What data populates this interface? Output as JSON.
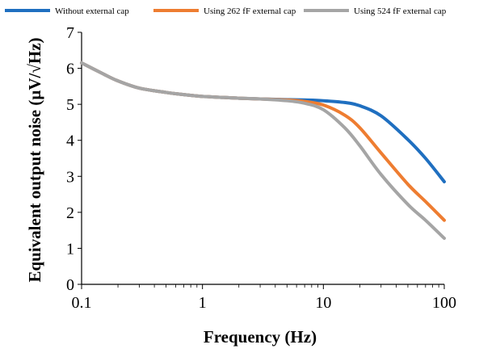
{
  "chart_data": {
    "type": "line",
    "title": "",
    "xlabel": "Frequency (Hz)",
    "ylabel": "Equivalent output noise (µV/√Hz)",
    "xscale": "log",
    "xlim": [
      0.1,
      100
    ],
    "ylim": [
      0,
      7
    ],
    "x_ticks": [
      0.1,
      1,
      10,
      100
    ],
    "x_tick_labels": [
      "0.1",
      "1",
      "10",
      "100"
    ],
    "y_ticks": [
      0,
      1,
      2,
      3,
      4,
      5,
      6,
      7
    ],
    "y_tick_labels": [
      "0",
      "1",
      "2",
      "3",
      "4",
      "5",
      "6",
      "7"
    ],
    "grid": false,
    "legend_position": "top",
    "x": [
      0.1,
      0.15,
      0.2,
      0.3,
      0.5,
      0.7,
      1,
      1.5,
      2,
      3,
      5,
      7,
      10,
      15,
      20,
      30,
      50,
      70,
      100
    ],
    "series": [
      {
        "name": "Without external cap",
        "color": "#1f6fc0",
        "values": [
          6.15,
          5.85,
          5.65,
          5.45,
          5.33,
          5.27,
          5.22,
          5.19,
          5.17,
          5.15,
          5.13,
          5.12,
          5.1,
          5.05,
          4.96,
          4.68,
          4.02,
          3.5,
          2.85
        ]
      },
      {
        "name": "Using 262 fF external cap",
        "color": "#ee7d31",
        "values": [
          6.15,
          5.85,
          5.65,
          5.45,
          5.33,
          5.27,
          5.22,
          5.19,
          5.17,
          5.15,
          5.12,
          5.08,
          4.98,
          4.7,
          4.35,
          3.65,
          2.78,
          2.3,
          1.78
        ]
      },
      {
        "name": "Using 524 fF external cap",
        "color": "#a5a5a5",
        "values": [
          6.15,
          5.85,
          5.65,
          5.45,
          5.33,
          5.27,
          5.22,
          5.19,
          5.17,
          5.15,
          5.1,
          5.03,
          4.85,
          4.35,
          3.85,
          3.05,
          2.22,
          1.78,
          1.28
        ]
      }
    ]
  }
}
